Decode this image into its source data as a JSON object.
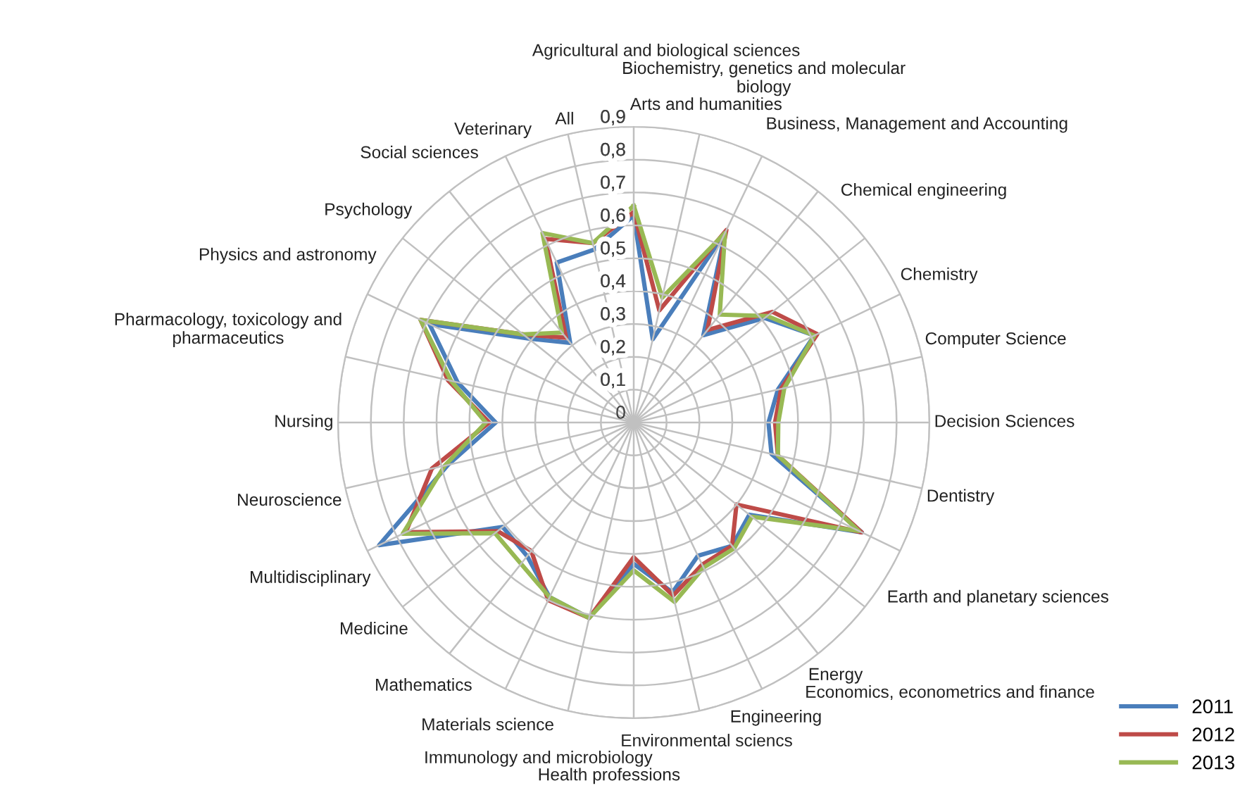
{
  "chart_data": {
    "type": "radar",
    "categories": [
      "Agricultural and biological sciences",
      "Arts and humanities",
      "Biochemistry, genetics and molecular\nbiology",
      "Business, Management and Accounting",
      "Chemical engineering",
      "Chemistry",
      "Computer Science",
      "Decision Sciences",
      "Dentistry",
      "Earth and planetary sciences",
      "Economics, econometrics and finance",
      "Energy",
      "Engineering",
      "Environmental sciencs",
      "Health professions",
      "Immunology and microbiology",
      "Materials science",
      "Mathematics",
      "Medicine",
      "Multidisciplinary",
      "Neuroscience",
      "Nursing",
      "Pharmacology, toxicology and\npharmaceutics",
      "Physics and astronomy",
      "Psychology",
      "Social sciences",
      "Veterinary",
      "All"
    ],
    "series": [
      {
        "name": "2011",
        "color": "#4a7ebb",
        "values": [
          0.63,
          0.26,
          0.64,
          0.34,
          0.51,
          0.61,
          0.45,
          0.41,
          0.43,
          0.77,
          0.45,
          0.48,
          0.45,
          0.53,
          0.43,
          0.61,
          0.59,
          0.52,
          0.51,
          0.86,
          0.58,
          0.42,
          0.55,
          0.69,
          0.41,
          0.31,
          0.54,
          0.54
        ]
      },
      {
        "name": "2012",
        "color": "#be4b48",
        "values": [
          0.64,
          0.35,
          0.65,
          0.36,
          0.54,
          0.62,
          0.46,
          0.43,
          0.45,
          0.77,
          0.4,
          0.48,
          0.48,
          0.54,
          0.41,
          0.61,
          0.6,
          0.5,
          0.53,
          0.77,
          0.63,
          0.44,
          0.58,
          0.72,
          0.43,
          0.33,
          0.62,
          0.56
        ]
      },
      {
        "name": "2013",
        "color": "#98b954",
        "values": [
          0.66,
          0.39,
          0.64,
          0.42,
          0.52,
          0.61,
          0.47,
          0.44,
          0.45,
          0.76,
          0.46,
          0.49,
          0.49,
          0.56,
          0.45,
          0.61,
          0.59,
          0.55,
          0.54,
          0.78,
          0.59,
          0.45,
          0.57,
          0.72,
          0.43,
          0.35,
          0.64,
          0.56
        ]
      }
    ],
    "ylim": [
      0,
      0.9
    ],
    "yticks": [
      0,
      {
        "value": 0.1,
        "label": "0,1"
      },
      {
        "value": 0.2,
        "label": "0,2"
      },
      {
        "value": 0.3,
        "label": "0,3"
      },
      {
        "value": 0.4,
        "label": "0,4"
      },
      {
        "value": 0.5,
        "label": "0,5"
      },
      {
        "value": 0.6,
        "label": "0,6"
      },
      {
        "value": 0.7,
        "label": "0,7"
      },
      {
        "value": 0.8,
        "label": "0,8"
      },
      {
        "value": 0.9,
        "label": "0,9"
      }
    ],
    "grid": true,
    "legend": "bottom right",
    "marker": "none",
    "line_style": "solid"
  }
}
